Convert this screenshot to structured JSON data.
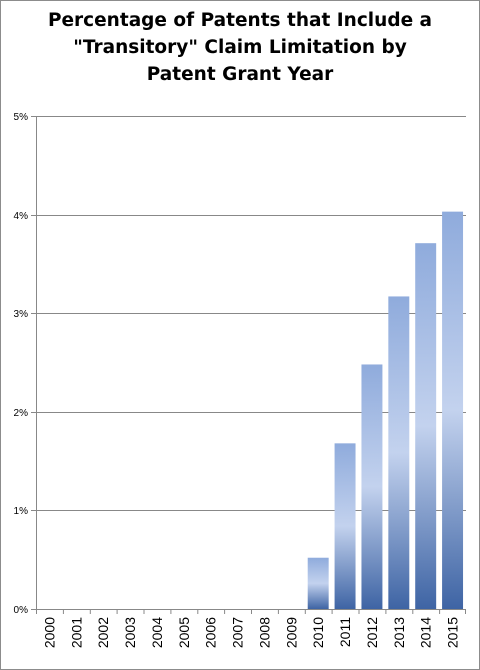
{
  "chart_data": {
    "type": "bar",
    "title_lines": [
      "Percentage of Patents that Include a",
      "\"Transitory\" Claim Limitation by",
      "Patent Grant Year"
    ],
    "categories": [
      "2000",
      "2001",
      "2002",
      "2003",
      "2004",
      "2005",
      "2006",
      "2007",
      "2008",
      "2009",
      "2010",
      "2011",
      "2012",
      "2013",
      "2014",
      "2015"
    ],
    "values": [
      0,
      0,
      0,
      0,
      0,
      0,
      0,
      0,
      0,
      0,
      0.52,
      1.68,
      2.48,
      3.17,
      3.71,
      4.03
    ],
    "ylim": [
      0,
      5
    ],
    "yticks": [
      0,
      1,
      2,
      3,
      4,
      5
    ],
    "ytick_labels": [
      "0%",
      "1%",
      "2%",
      "3%",
      "4%",
      "5%"
    ],
    "xlabel": "",
    "ylabel": "",
    "grid": true,
    "legend": "none",
    "colors": {
      "bar_top": "#8fabdc",
      "bar_mid": "#c3d2ee",
      "bar_bottom": "#3e64a4",
      "grid": "#888888"
    }
  }
}
